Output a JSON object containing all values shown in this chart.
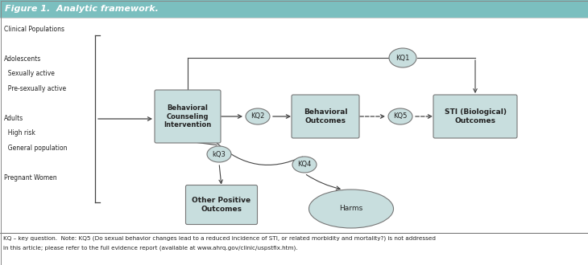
{
  "title": "Figure 1.  Analytic framework.",
  "title_color": "#ffffff",
  "title_bg_color": "#7bbfbf",
  "bg_color": "#ffffff",
  "box_fill": "#c8dede",
  "box_edge": "#777777",
  "ellipse_fill": "#c8dede",
  "ellipse_edge": "#777777",
  "arrow_color": "#444444",
  "footnote_line1": "KQ – key question.  Note: KQ5 (Do sexual behavior changes lead to a reduced incidence of STI, or related morbidity and mortality?) is not addressed",
  "footnote_line2": "in this article; please refer to the full evidence report (available at www.ahrq.gov/clinic/uspstfix.htm).",
  "pop_lines": [
    [
      "Clinical Populations",
      false
    ],
    [
      "",
      false
    ],
    [
      "Adolescents",
      false
    ],
    [
      "  Sexually active",
      true
    ],
    [
      "  Pre-sexually active",
      true
    ],
    [
      "",
      false
    ],
    [
      "Adults",
      false
    ],
    [
      "  High risk",
      true
    ],
    [
      "  General population",
      true
    ],
    [
      "",
      false
    ],
    [
      "Pregnant Women",
      false
    ]
  ]
}
